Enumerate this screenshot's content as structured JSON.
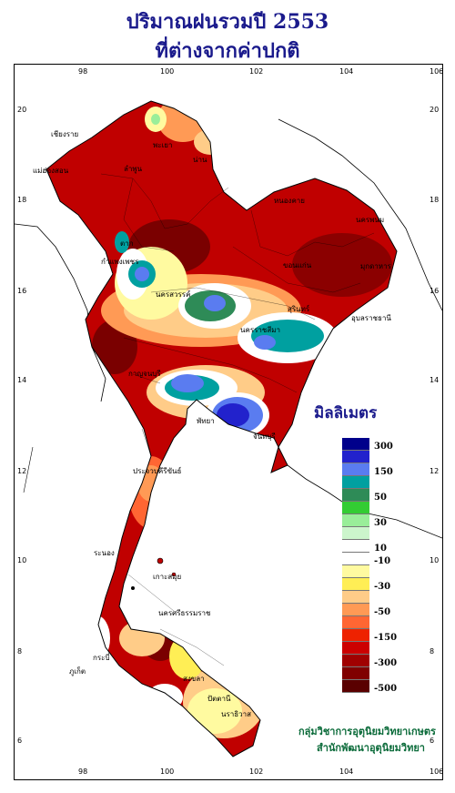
{
  "title_line1": "ปริมาณฝนรวมปี  2553",
  "title_line2": "ที่ต่างจากค่าปกติ",
  "longitude_ticks": [
    "98",
    "100",
    "102",
    "104",
    "106"
  ],
  "latitude_ticks": [
    "20",
    "18",
    "16",
    "14",
    "12",
    "10",
    "8",
    "6"
  ],
  "legend": {
    "title": "มิลลิเมตร",
    "classes": [
      {
        "color": "#00008b",
        "label": "300"
      },
      {
        "color": "#2222cc",
        "label": ""
      },
      {
        "color": "#5a7cf0",
        "label": "150"
      },
      {
        "color": "#00a0a0",
        "label": ""
      },
      {
        "color": "#2e8b57",
        "label": "50"
      },
      {
        "color": "#33cc33",
        "label": ""
      },
      {
        "color": "#99ee99",
        "label": "30"
      },
      {
        "color": "#ccf5cc",
        "label": ""
      },
      {
        "color": "#ffffff",
        "label": "10"
      },
      {
        "color": "#ffffff",
        "label": "-10"
      },
      {
        "color": "#fffaa0",
        "label": ""
      },
      {
        "color": "#ffee55",
        "label": "-30"
      },
      {
        "color": "#ffcc88",
        "label": ""
      },
      {
        "color": "#ff9a55",
        "label": "-50"
      },
      {
        "color": "#ff6633",
        "label": ""
      },
      {
        "color": "#ee2200",
        "label": "-150"
      },
      {
        "color": "#cc0000",
        "label": ""
      },
      {
        "color": "#a00000",
        "label": "-300"
      },
      {
        "color": "#800000",
        "label": ""
      },
      {
        "color": "#5a0000",
        "label": "-500"
      }
    ]
  },
  "credit_line1": "กลุ่มวิชาการอุตุนิยมวิทยาเกษตร",
  "credit_line2": "สำนักพัฒนาอุตุนิยมวิทยา",
  "places": [
    {
      "name": "เชียงราย",
      "key": "p1"
    },
    {
      "name": "พะเยา",
      "key": "p2"
    },
    {
      "name": "น่าน",
      "key": "p3"
    },
    {
      "name": "แม่ฮ่องสอน",
      "key": "p4"
    },
    {
      "name": "ลำพูน",
      "key": "p5"
    },
    {
      "name": "หนองคาย",
      "key": "p6"
    },
    {
      "name": "นครพนม",
      "key": "p7"
    },
    {
      "name": "ตาก",
      "key": "p8"
    },
    {
      "name": "กำแพงเพชร",
      "key": "p9"
    },
    {
      "name": "ขอนแก่น",
      "key": "p10"
    },
    {
      "name": "นครสวรรค์",
      "key": "p11"
    },
    {
      "name": "มุกดาหาร",
      "key": "p12"
    },
    {
      "name": "นครราชสีมา",
      "key": "p13"
    },
    {
      "name": "กาญจนบุรี",
      "key": "p14"
    },
    {
      "name": "อุบลราชธานี",
      "key": "p15"
    },
    {
      "name": "สุรินทร์",
      "key": "p16"
    },
    {
      "name": "พัทยา",
      "key": "p17"
    },
    {
      "name": "จันทบุรี",
      "key": "p18"
    },
    {
      "name": "ประจวบคีรีขันธ์",
      "key": "p19"
    },
    {
      "name": "ระนอง",
      "key": "p20"
    },
    {
      "name": "เกาะสมุย",
      "key": "p21"
    },
    {
      "name": "นครศรีธรรมราช",
      "key": "p22"
    },
    {
      "name": "กระบี่",
      "key": "p23"
    },
    {
      "name": "ภูเก็ต",
      "key": "p24"
    },
    {
      "name": "สงขลา",
      "key": "p25"
    },
    {
      "name": "ปัตตานี",
      "key": "p26"
    },
    {
      "name": "นราธิวาส",
      "key": "p27"
    }
  ]
}
